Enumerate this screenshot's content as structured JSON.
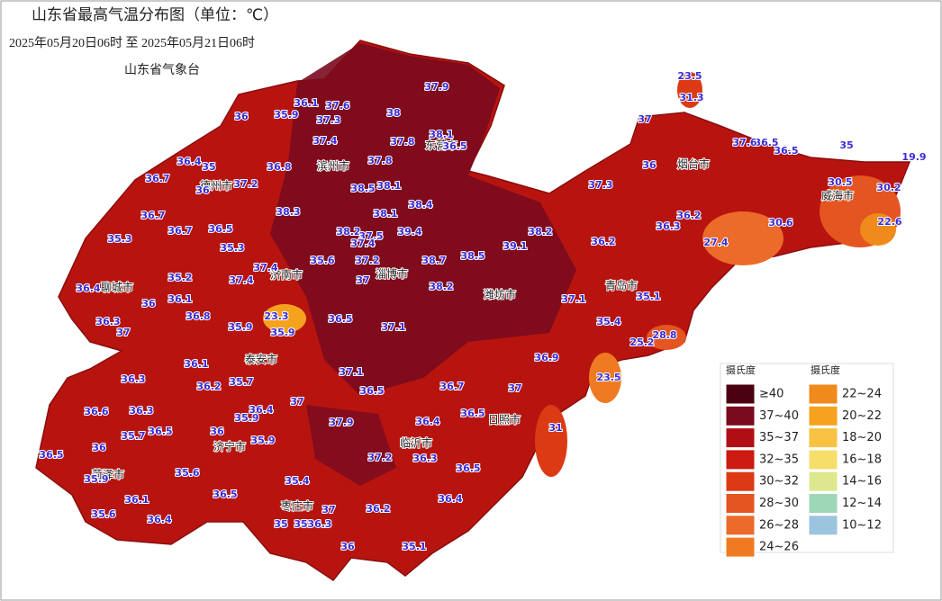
{
  "header": {
    "title": "山东省最高气温分布图（单位：℃）",
    "time_range": "2025年05月20日06时  至  2025年05月21日06时",
    "agency": "山东省气象台"
  },
  "stations": [
    36.1,
    37.6,
    37.9,
    36,
    35.9,
    37.3,
    38,
    38.1,
    37.4,
    37.8,
    36.5,
    36.4,
    35,
    36.8,
    37.8,
    36.7,
    37.2,
    38.5,
    38.1,
    36,
    38.3,
    38.1,
    38.4,
    36.7,
    36.7,
    36.5,
    38.2,
    37.5,
    39.4,
    38.2,
    39.1,
    35.3,
    35.3,
    37.4,
    38.5,
    35.6,
    37.2,
    38.7,
    37.4,
    35.2,
    37.4,
    37,
    38.2,
    36.4,
    36.1,
    36,
    37.1,
    36.8,
    23.3,
    36.5,
    36.3,
    37,
    35.9,
    35.9,
    37.1,
    36.1,
    35.7,
    37.1,
    36.3,
    36.2,
    36.9,
    36.7,
    36.5,
    37,
    37,
    36.6,
    36.3,
    36.4,
    35.9,
    36.5,
    36,
    35.7,
    37.9,
    36.4,
    36.5,
    35.9,
    36,
    36.5,
    37.2,
    36.3,
    35.9,
    35.6,
    36.5,
    35.4,
    36.5,
    36.1,
    36.4,
    36.2,
    37,
    35.6,
    36.4,
    35,
    35,
    36.3,
    36,
    35.1,
    31,
    23.5,
    35.4,
    25.2,
    28.8,
    35.1,
    36.2,
    36.3,
    36.2,
    27.4,
    30.6,
    37.3,
    36,
    30.5,
    30.2,
    22.6,
    19.9,
    35,
    36.5,
    36.5,
    37.6,
    37,
    31.3,
    23.5
  ],
  "cities": [
    "滨州市",
    "德州市",
    "东营市",
    "烟台市",
    "威海市",
    "济南市",
    "淄博市",
    "潍坊市",
    "青岛市",
    "聊城市",
    "泰安市",
    "济宁市",
    "菏泽市",
    "临沂市",
    "日照市",
    "枣庄市"
  ],
  "legend": {
    "title_left": "摄氏度",
    "title_right": "摄氏度",
    "left": [
      {
        "label": "≥40",
        "color": "#4a0010"
      },
      {
        "label": "37~40",
        "color": "#7a0a1e"
      },
      {
        "label": "35~37",
        "color": "#b00e14"
      },
      {
        "label": "32~35",
        "color": "#cc1a10"
      },
      {
        "label": "30~32",
        "color": "#dc3a14"
      },
      {
        "label": "28~30",
        "color": "#e45522"
      },
      {
        "label": "26~28",
        "color": "#ec6a2a"
      },
      {
        "label": "24~26",
        "color": "#f07a22"
      }
    ],
    "right": [
      {
        "label": "22~24",
        "color": "#f08a1a"
      },
      {
        "label": "20~22",
        "color": "#f5a21e"
      },
      {
        "label": "18~20",
        "color": "#f8c242"
      },
      {
        "label": "16~18",
        "color": "#f6de6a"
      },
      {
        "label": "14~16",
        "color": "#dde88e"
      },
      {
        "label": "12~14",
        "color": "#9ed6b8"
      },
      {
        "label": "10~12",
        "color": "#9cc4de"
      }
    ]
  }
}
